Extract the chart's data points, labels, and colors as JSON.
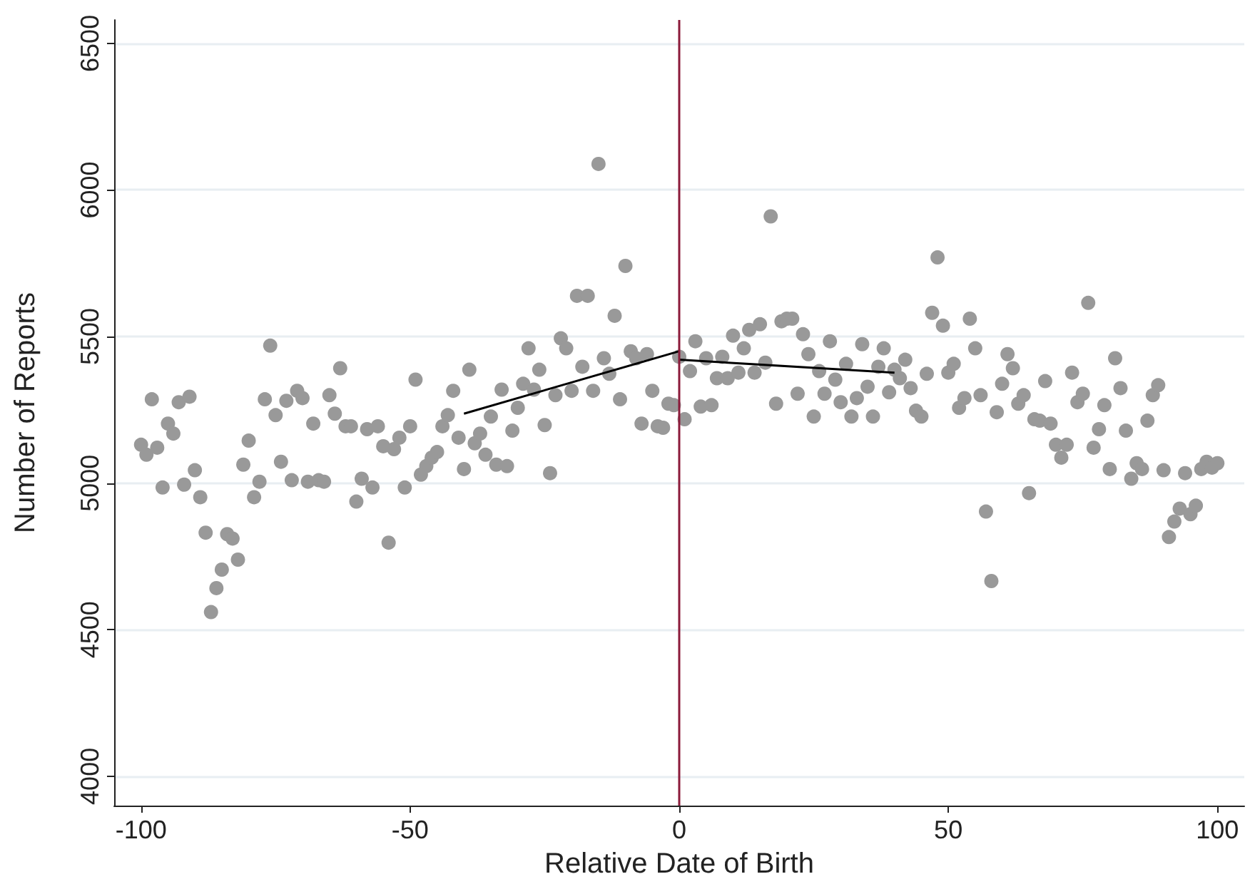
{
  "chart_data": {
    "type": "scatter",
    "xlabel": "Relative Date of Birth",
    "ylabel": "Number of Reports",
    "xlim": [
      -105,
      105
    ],
    "xticks": [
      -100,
      -50,
      0,
      50,
      100
    ],
    "ylim": [
      3900,
      6580
    ],
    "yticks": [
      4000,
      4500,
      5000,
      5500,
      6000,
      6500
    ],
    "grid": "y",
    "marker": "circle",
    "x": [
      -100,
      -99,
      -98,
      -97,
      -96,
      -95,
      -94,
      -93,
      -92,
      -91,
      -90,
      -89,
      -88,
      -87,
      -86,
      -85,
      -84,
      -83,
      -82,
      -81,
      -80,
      -79,
      -78,
      -77,
      -76,
      -75,
      -74,
      -73,
      -72,
      -71,
      -70,
      -69,
      -68,
      -67,
      -66,
      -65,
      -64,
      -63,
      -62,
      -61,
      -60,
      -59,
      -58,
      -57,
      -56,
      -55,
      -54,
      -53,
      -52,
      -51,
      -50,
      -49,
      -48,
      -47,
      -46,
      -45,
      -44,
      -43,
      -42,
      -41,
      -40,
      -39,
      -38,
      -37,
      -36,
      -35,
      -34,
      -33,
      -32,
      -31,
      -30,
      -29,
      -28,
      -27,
      -26,
      -25,
      -24,
      -23,
      -22,
      -21,
      -20,
      -19,
      -18,
      -17,
      -16,
      -15,
      -14,
      -13,
      -12,
      -11,
      -10,
      -9,
      -8,
      -7,
      -6,
      -5,
      -4,
      -3,
      -2,
      -1,
      0,
      1,
      2,
      3,
      4,
      5,
      6,
      7,
      8,
      9,
      10,
      11,
      12,
      13,
      14,
      15,
      16,
      17,
      18,
      19,
      20,
      21,
      22,
      23,
      24,
      25,
      26,
      27,
      28,
      29,
      30,
      31,
      32,
      33,
      34,
      35,
      36,
      37,
      38,
      39,
      40,
      41,
      42,
      43,
      44,
      45,
      46,
      47,
      48,
      49,
      50,
      51,
      52,
      53,
      54,
      55,
      56,
      57,
      58,
      59,
      60,
      61,
      62,
      63,
      64,
      65,
      66,
      67,
      68,
      69,
      70,
      71,
      72,
      73,
      74,
      75,
      76,
      77,
      78,
      79,
      80,
      81,
      82,
      83,
      84,
      85,
      86,
      87,
      88,
      89,
      90,
      91,
      92,
      93,
      94,
      95,
      96,
      97,
      98,
      99,
      100
    ],
    "series": [
      {
        "color": "#999999",
        "values": [
          5131,
          5097,
          5286,
          5121,
          4985,
          5203,
          5169,
          5276,
          4995,
          5295,
          5044,
          4952,
          4831,
          4560,
          4642,
          4705,
          4826,
          4811,
          4739,
          5063,
          5145,
          4952,
          5005,
          5286,
          5469,
          5232,
          5073,
          5281,
          5010,
          5315,
          5290,
          5005,
          5203,
          5010,
          5005,
          5300,
          5237,
          5392,
          5194,
          5194,
          4937,
          5015,
          5184,
          4985,
          5194,
          5126,
          4797,
          5116,
          5155,
          4985,
          5194,
          5353,
          5029,
          5058,
          5087,
          5106,
          5194,
          5232,
          5315,
          5155,
          5048,
          5387,
          5136,
          5169,
          5097,
          5227,
          5063,
          5319,
          5058,
          5179,
          5257,
          5339,
          5460,
          5319,
          5387,
          5198,
          5034,
          5300,
          5494,
          5460,
          5315,
          5639,
          5397,
          5639,
          5315,
          6089,
          5426,
          5373,
          5571,
          5286,
          5741,
          5450,
          5426,
          5203,
          5440,
          5315,
          5194,
          5189,
          5271,
          5266,
          5431,
          5218,
          5382,
          5484,
          5261,
          5426,
          5266,
          5358,
          5431,
          5358,
          5503,
          5377,
          5460,
          5523,
          5377,
          5542,
          5411,
          5910,
          5271,
          5552,
          5561,
          5561,
          5305,
          5508,
          5440,
          5227,
          5382,
          5305,
          5484,
          5353,
          5276,
          5407,
          5227,
          5290,
          5474,
          5329,
          5227,
          5397,
          5460,
          5310,
          5387,
          5358,
          5421,
          5324,
          5247,
          5227,
          5373,
          5581,
          5770,
          5537,
          5377,
          5407,
          5257,
          5290,
          5561,
          5460,
          5300,
          4903,
          4666,
          5242,
          5339,
          5440,
          5392,
          5271,
          5300,
          4966,
          5218,
          5213,
          5348,
          5203,
          5131,
          5087,
          5131,
          5377,
          5276,
          5305,
          5615,
          5121,
          5184,
          5266,
          5048,
          5426,
          5324,
          5179,
          5015,
          5068,
          5048,
          5213,
          5300,
          5334,
          5044,
          4816,
          4869,
          4913,
          5034,
          4894,
          4923,
          5048,
          5073,
          5053,
          5068
        ]
      },
      {
        "type": "line",
        "marker": "none",
        "color": "#000000",
        "x": [
          -40,
          0
        ],
        "values": [
          5237,
          5450
        ]
      },
      {
        "type": "line",
        "marker": "none",
        "color": "#000000",
        "x": [
          0,
          40
        ],
        "values": [
          5421,
          5377
        ]
      }
    ],
    "ref_lines": [
      {
        "axis": "x",
        "value": 0,
        "color": "#8b1a3a"
      }
    ]
  }
}
